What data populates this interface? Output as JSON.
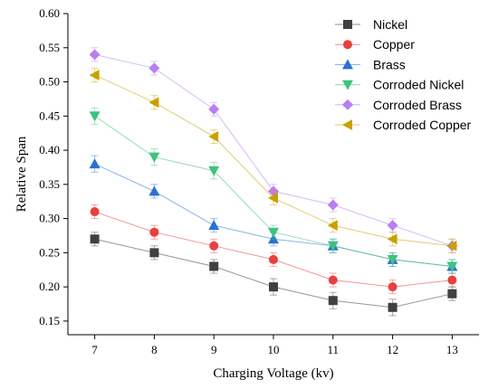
{
  "chart_data": {
    "type": "line",
    "xlabel": "Charging Voltage (kv)",
    "ylabel": "Relative Span",
    "x": [
      7,
      8,
      9,
      10,
      11,
      12,
      13
    ],
    "xlim": [
      6.55,
      13.45
    ],
    "ylim": [
      0.13,
      0.6
    ],
    "yticks": [
      0.15,
      0.2,
      0.25,
      0.3,
      0.35,
      0.4,
      0.45,
      0.5,
      0.55,
      0.6
    ],
    "legend_position": "top-right",
    "error_bars": true,
    "series": [
      {
        "name": "Nickel",
        "color": "#404040",
        "marker": "square",
        "values": [
          0.27,
          0.25,
          0.23,
          0.2,
          0.18,
          0.17,
          0.19
        ],
        "errors": [
          0.01,
          0.01,
          0.01,
          0.012,
          0.012,
          0.012,
          0.01
        ]
      },
      {
        "name": "Copper",
        "color": "#e8403f",
        "marker": "circle",
        "values": [
          0.31,
          0.28,
          0.26,
          0.24,
          0.21,
          0.2,
          0.21
        ],
        "errors": [
          0.01,
          0.01,
          0.01,
          0.01,
          0.01,
          0.01,
          0.01
        ]
      },
      {
        "name": "Brass",
        "color": "#2a72cf",
        "marker": "triangle-up",
        "values": [
          0.38,
          0.34,
          0.29,
          0.27,
          0.26,
          0.24,
          0.23
        ],
        "errors": [
          0.012,
          0.01,
          0.01,
          0.01,
          0.01,
          0.01,
          0.01
        ]
      },
      {
        "name": "Corroded Nickel",
        "color": "#3fc27e",
        "marker": "triangle-down",
        "values": [
          0.45,
          0.39,
          0.37,
          0.28,
          0.26,
          0.24,
          0.23
        ],
        "errors": [
          0.012,
          0.012,
          0.012,
          0.01,
          0.01,
          0.01,
          0.01
        ]
      },
      {
        "name": "Corroded Brass",
        "color": "#b97ff0",
        "marker": "diamond",
        "values": [
          0.54,
          0.52,
          0.46,
          0.34,
          0.32,
          0.29,
          0.26
        ],
        "errors": [
          0.01,
          0.01,
          0.01,
          0.01,
          0.01,
          0.01,
          0.01
        ]
      },
      {
        "name": "Corroded Copper",
        "color": "#c9a100",
        "marker": "triangle-left",
        "values": [
          0.51,
          0.47,
          0.42,
          0.33,
          0.29,
          0.27,
          0.26
        ],
        "errors": [
          0.01,
          0.01,
          0.01,
          0.01,
          0.01,
          0.01,
          0.01
        ]
      }
    ]
  }
}
